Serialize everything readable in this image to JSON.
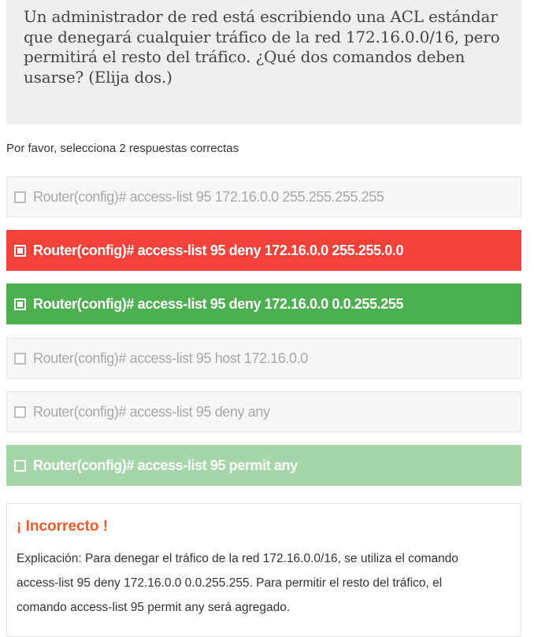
{
  "question": {
    "line1": "Un administrador de red está escribiendo una ACL estándar",
    "line2": "que denegará cualquier tráfico de la red 172.16.0.0/16, pero",
    "line3": "permitirá el resto del tráfico. ¿Qué dos comandos deben",
    "line4": "usarse? (Elija dos.)"
  },
  "instruction": "Por favor, selecciona 2 respuestas correctas",
  "options": [
    {
      "label": "Router(config)# access-list 95 172.16.0.0 255.255.255.255",
      "state": "unselected"
    },
    {
      "label": "Router(config)# access-list 95 deny 172.16.0.0 255.255.0.0",
      "state": "selected-wrong"
    },
    {
      "label": "Router(config)# access-list 95 deny 172.16.0.0 0.0.255.255",
      "state": "selected-correct"
    },
    {
      "label": "Router(config)# access-list 95 host 172.16.0.0",
      "state": "unselected"
    },
    {
      "label": "Router(config)# access-list 95 deny any",
      "state": "unselected"
    },
    {
      "label": "Router(config)# access-list 95 permit any",
      "state": "missed-correct"
    }
  ],
  "feedback": {
    "result": "¡ Incorrecto !",
    "explanation_line1": "Explicación: Para denegar el tráfico de la red 172.16.0.0/16, se utiliza el comando",
    "explanation_line2": "access-list 95 deny 172.16.0.0 0.0.255.255. Para permitir el resto del tráfico, el",
    "explanation_line3": "comando access-list 95 permit any será agregado."
  },
  "colors": {
    "wrong": "#f2423a",
    "correct": "#4caf50",
    "missed": "#a5d6a7",
    "result_title": "#f05a28",
    "question_bg": "#efefef"
  }
}
